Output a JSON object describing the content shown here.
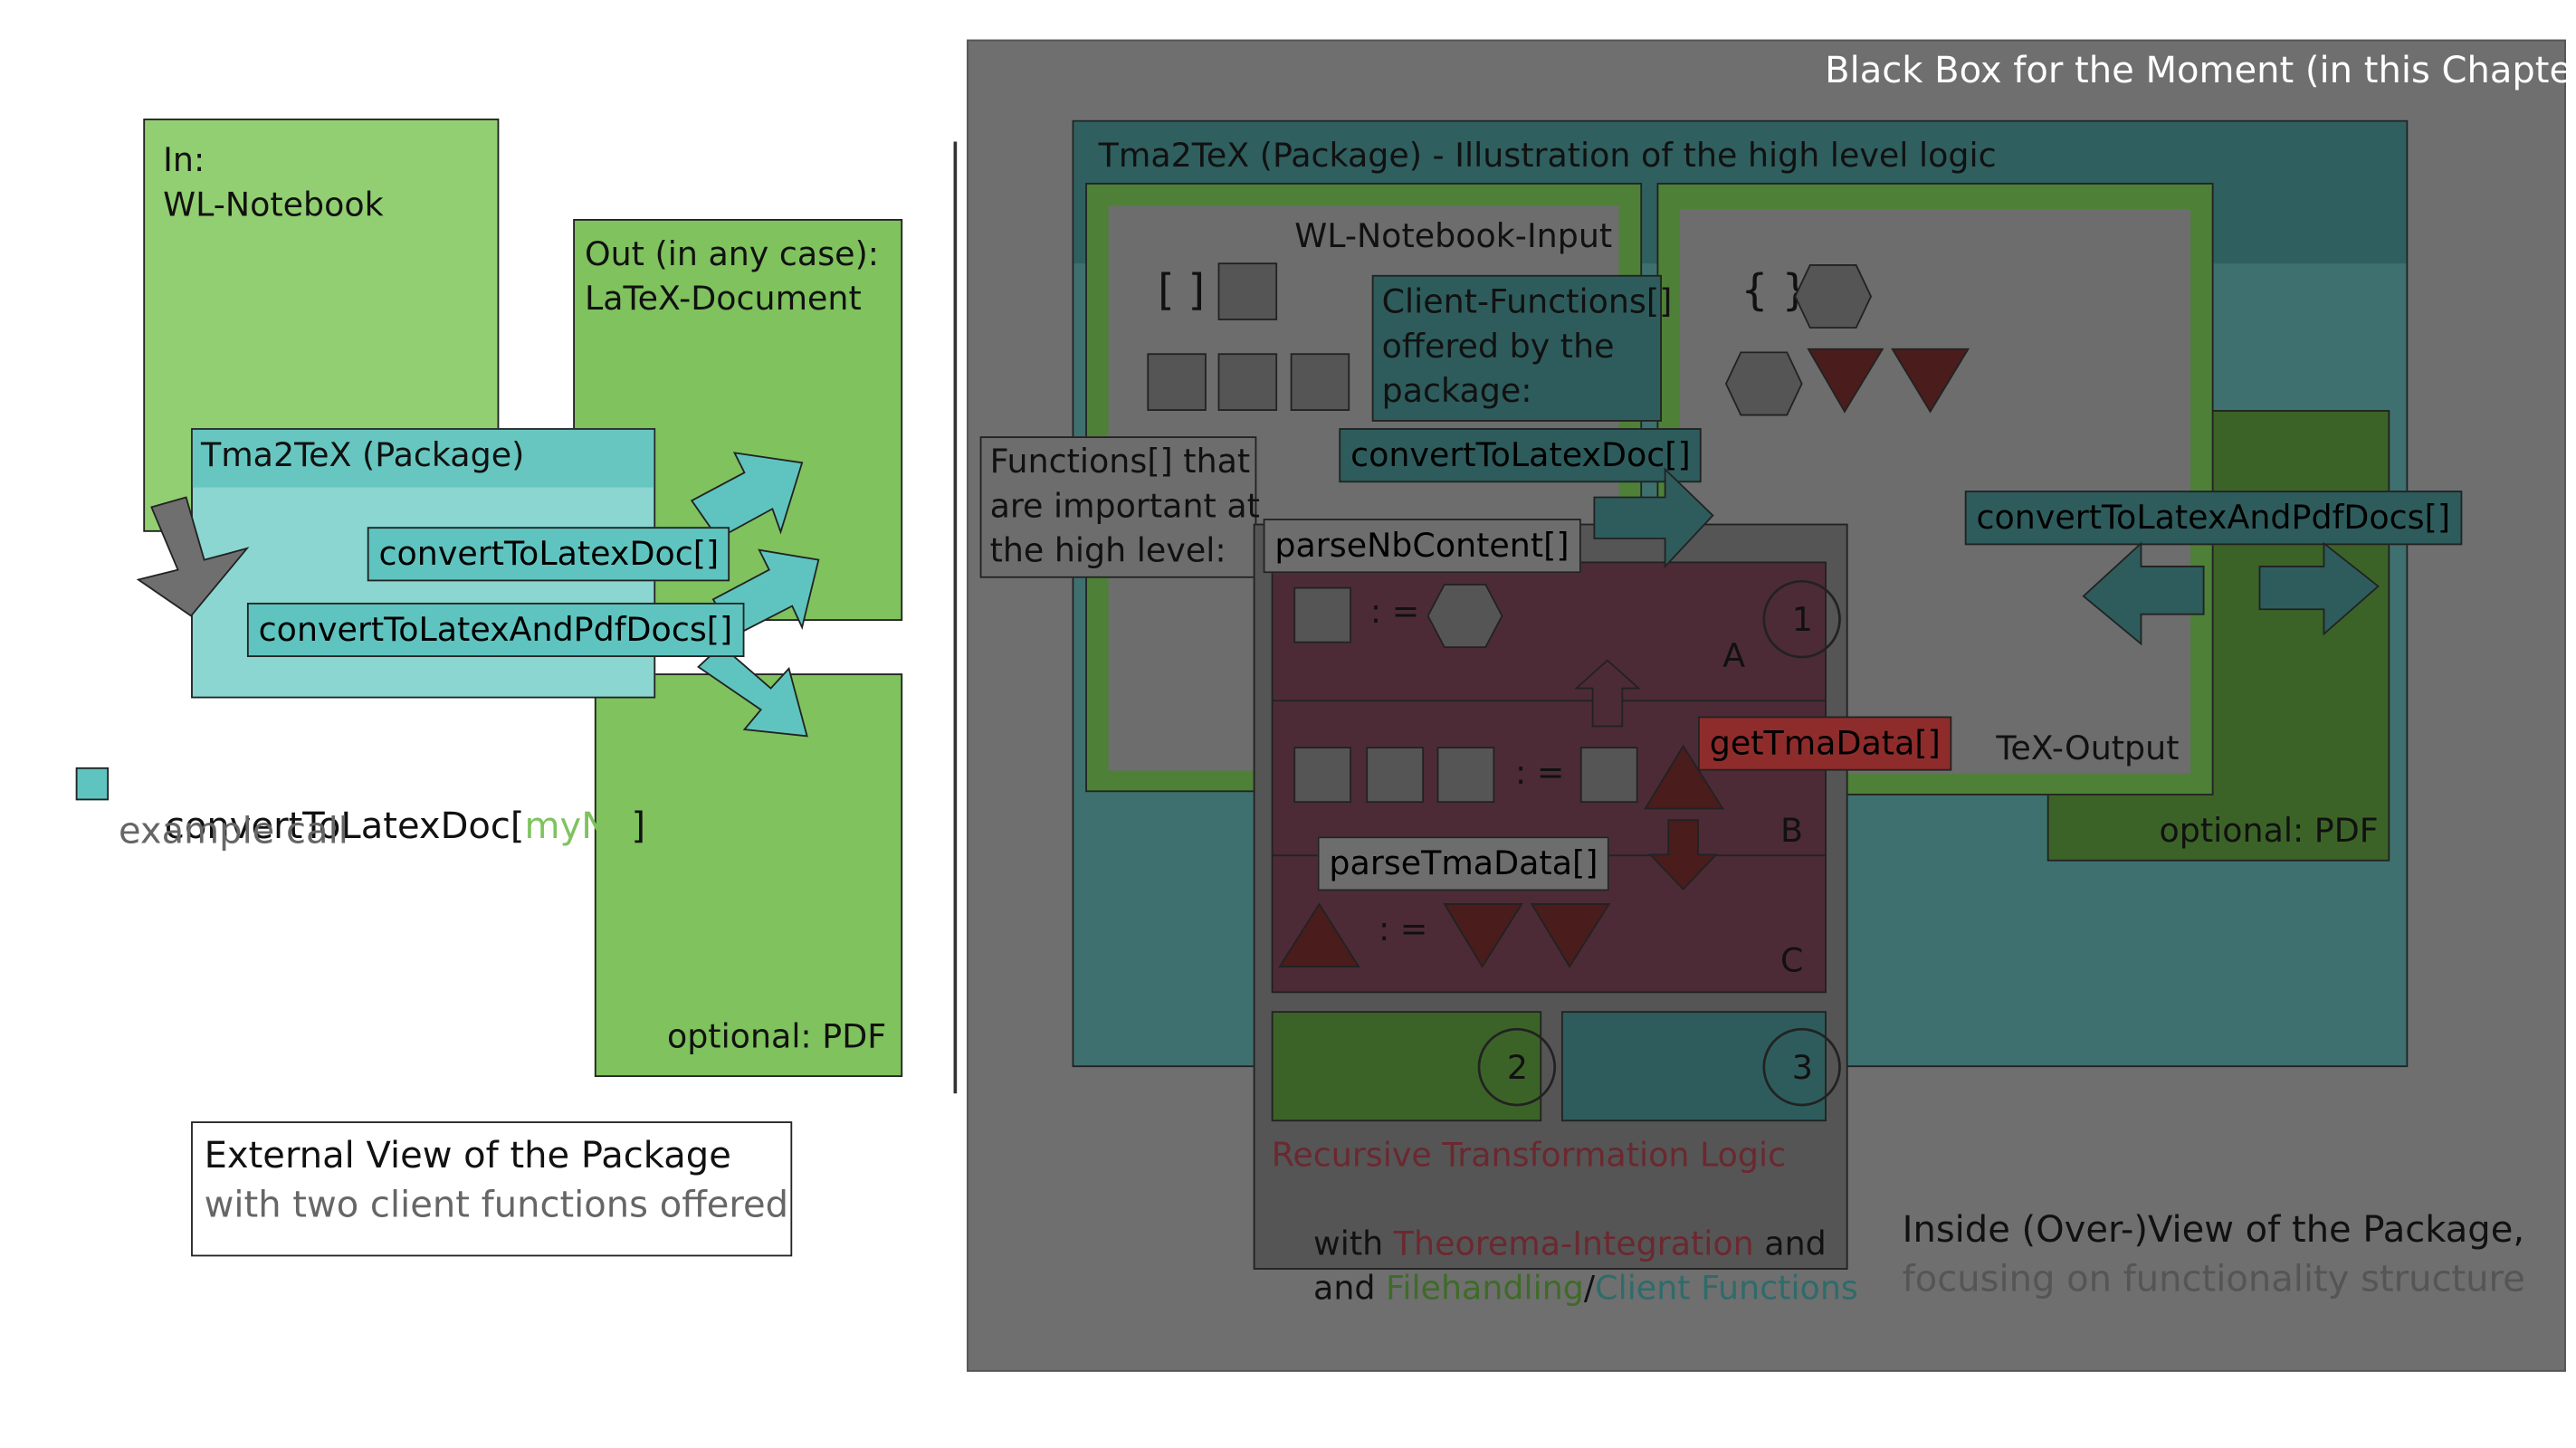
{
  "external_view": {
    "input_box": {
      "line1": "In:",
      "line2": "WL-Notebook"
    },
    "output_box": {
      "line1": "Out (in any case):",
      "line2": "LaTeX-Document"
    },
    "pdf_box": {
      "label": "optional: PDF"
    },
    "package_box": {
      "title": "Tma2TeX (Package)"
    },
    "fn_convert_doc": "convertToLatexDoc[]",
    "fn_convert_pdf": "convertToLatexAndPdfDocs[]",
    "example": {
      "call_prefix": "convertToLatexDoc[",
      "call_arg": "myNb",
      "call_suffix": "]",
      "caption": "example call"
    },
    "caption_box": {
      "title": "External View of the Package",
      "subtitle": "with two client functions offered"
    }
  },
  "inside_view": {
    "black_box_label": "Black Box for the Moment (in this Chapter)",
    "package_title": "Tma2TeX (Package) - Illustration of the high level logic",
    "notebook_input_label": "WL-Notebook-Input",
    "bracket_symbol": "[ ]",
    "brace_symbol": "{ }",
    "client_functions_note": {
      "line1": "Client-Functions[]",
      "line2": "offered by the",
      "line3": "package:"
    },
    "fn_convert_doc": "convertToLatexDoc[]",
    "fn_convert_pdf": "convertToLatexAndPdfDocs[]",
    "important_functions_note": {
      "line1": "Functions[] that",
      "line2": "are important at",
      "line3": "the high level:"
    },
    "fn_parse_nb": "parseNbContent[]",
    "fn_get_tma": "getTmaData[]",
    "fn_parse_tma": "parseTmaData[]",
    "assign_symbol": ": =",
    "section_a": "A",
    "section_b": "B",
    "section_c": "C",
    "marker_1": "1",
    "marker_2": "2",
    "marker_3": "3",
    "tex_output_label": "TeX-Output",
    "pdf_label": "optional: PDF",
    "legend": {
      "line1": "Recursive Transformation Logic",
      "line2_prefix": "with ",
      "line2_theorema": "Theorema-Integration",
      "line2_suffix": " and",
      "line3_prefix": "and ",
      "line3_filehandling": "Filehandling",
      "line3_slash": "/",
      "line3_client": "Client Functions"
    },
    "caption": {
      "title": "Inside (Over-)View of the Package,",
      "subtitle": "focusing on functionality structure"
    }
  },
  "colors": {
    "light_green": "#92cf72",
    "green": "#7fc25e",
    "cyan": "#5fc4bf",
    "cyan_light": "#8bd6d0",
    "dark_gray": "#6f6f6f",
    "teal": "#2e5c5c",
    "dark_green": "#3c6327",
    "maroon": "#4c2b37",
    "red_fn": "#8e2c2c",
    "legend_red": "#6b2830",
    "legend_green": "#3f6b28",
    "legend_teal": "#2f6b6b"
  }
}
